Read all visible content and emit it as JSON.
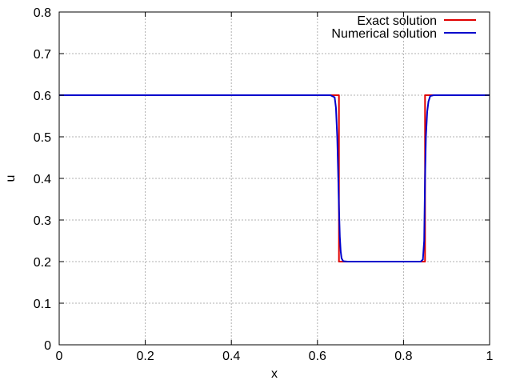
{
  "chart_data": {
    "type": "line",
    "title": "",
    "xlabel": "x",
    "ylabel": "u",
    "xlim": [
      0,
      1
    ],
    "ylim": [
      0,
      0.8
    ],
    "xticks": [
      "0",
      "0.2",
      "0.4",
      "0.6",
      "0.8",
      "1"
    ],
    "yticks": [
      "0",
      "0.1",
      "0.2",
      "0.3",
      "0.4",
      "0.5",
      "0.6",
      "0.7",
      "0.8"
    ],
    "xtick_values": [
      0,
      0.2,
      0.4,
      0.6,
      0.8,
      1.0
    ],
    "ytick_values": [
      0,
      0.1,
      0.2,
      0.3,
      0.4,
      0.5,
      0.6,
      0.7,
      0.8
    ],
    "grid": true,
    "legend_position": "top-right",
    "series": [
      {
        "name": "Exact solution",
        "color": "#e00000",
        "x": [
          0,
          0.65,
          0.65,
          0.85,
          0.85,
          1.0
        ],
        "y": [
          0.6,
          0.6,
          0.2,
          0.2,
          0.6,
          0.6
        ]
      },
      {
        "name": "Numerical solution",
        "color": "#0000cc",
        "x": [
          0,
          0.63,
          0.64,
          0.643,
          0.646,
          0.648,
          0.65,
          0.652,
          0.654,
          0.656,
          0.66,
          0.67,
          0.84,
          0.845,
          0.848,
          0.85,
          0.852,
          0.855,
          0.858,
          0.862,
          0.87,
          1.0
        ],
        "y": [
          0.6,
          0.6,
          0.595,
          0.57,
          0.5,
          0.42,
          0.33,
          0.26,
          0.225,
          0.208,
          0.201,
          0.2,
          0.2,
          0.205,
          0.25,
          0.4,
          0.5,
          0.56,
          0.585,
          0.598,
          0.6,
          0.6
        ]
      }
    ]
  }
}
